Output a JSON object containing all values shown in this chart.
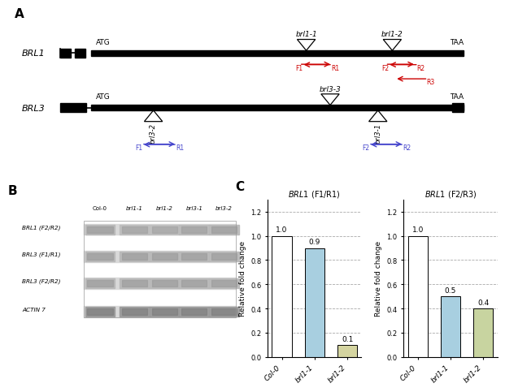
{
  "panel_A": {
    "brl1_label": "BRL1",
    "brl3_label": "BRL3",
    "brl1_atg": "ATG",
    "brl1_taa": "TAA",
    "brl3_atg": "ATG",
    "brl3_taa": "TAA",
    "brl1_mutant1": "brl1-1",
    "brl1_mutant2": "brl1-2",
    "brl3_mutant3": "brl3-3",
    "brl3_mutant_left": "brl3-2",
    "brl3_mutant_right": "brl3-1",
    "red_color": "#cc0000",
    "blue_color": "#4444cc",
    "black_color": "#000000"
  },
  "panel_B": {
    "lanes": [
      "Col-0",
      "brl1-1",
      "brl1-2",
      "brl3-1",
      "brl3-2"
    ],
    "rows": [
      "BRL1 (F2/R2)",
      "BRL3 (F1/R1)",
      "BRL3 (F2/R2)",
      "ACTIN 7"
    ]
  },
  "panel_C_left": {
    "title_italic": "BRL1",
    "title_normal": " (F1/R1)",
    "categories": [
      "Col-0",
      "brl1-1",
      "brl1-2"
    ],
    "values": [
      1.0,
      0.9,
      0.1
    ],
    "bar_colors": [
      "#ffffff",
      "#a8cfe0",
      "#d4d4a0"
    ],
    "bar_edgecolor": "#000000",
    "ylabel": "Relative fold change",
    "ylim": [
      0,
      1.3
    ],
    "yticks": [
      0.0,
      0.2,
      0.4,
      0.6,
      0.8,
      1.0,
      1.2
    ],
    "grid_color": "#aaaaaa",
    "grid_style": "--"
  },
  "panel_C_right": {
    "title_italic": "BRL1",
    "title_normal": " (F2/R3)",
    "categories": [
      "Col-0",
      "brl1-1",
      "brl1-2"
    ],
    "values": [
      1.0,
      0.5,
      0.4
    ],
    "bar_colors": [
      "#ffffff",
      "#a8cfe0",
      "#c8d4a0"
    ],
    "bar_edgecolor": "#000000",
    "ylabel": "Relative fold change",
    "ylim": [
      0,
      1.3
    ],
    "yticks": [
      0.0,
      0.2,
      0.4,
      0.6,
      0.8,
      1.0,
      1.2
    ],
    "grid_color": "#aaaaaa",
    "grid_style": "--"
  },
  "background_color": "#ffffff"
}
